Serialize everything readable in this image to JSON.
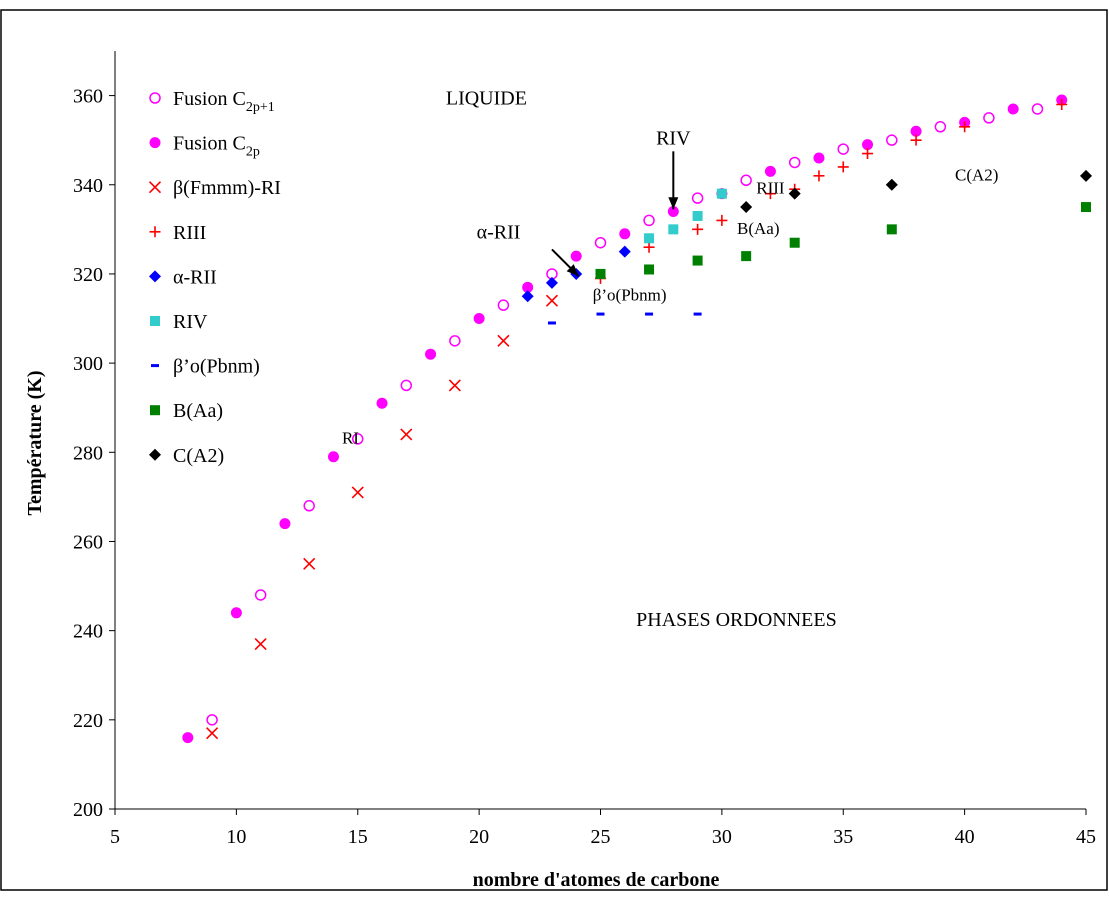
{
  "chart_data": {
    "type": "scatter",
    "title": "",
    "xlabel": "nombre d'atomes de carbone",
    "ylabel": "Température (K)",
    "xlim": [
      5,
      45
    ],
    "ylim": [
      200,
      370
    ],
    "x_ticks": [
      5,
      10,
      15,
      20,
      25,
      30,
      35,
      40,
      45
    ],
    "y_ticks": [
      200,
      220,
      240,
      260,
      280,
      300,
      320,
      340,
      360
    ],
    "grid": false,
    "legend_position": "top-left",
    "series": [
      {
        "name": "Fusion C2p+1",
        "legend": {
          "text": "Fusion C",
          "sub": "2p+1"
        },
        "marker": "open-circle",
        "color": "#ff00ff",
        "points": [
          [
            9,
            220
          ],
          [
            11,
            248
          ],
          [
            13,
            268
          ],
          [
            15,
            283
          ],
          [
            17,
            295
          ],
          [
            19,
            305
          ],
          [
            21,
            313
          ],
          [
            23,
            320
          ],
          [
            25,
            327
          ],
          [
            27,
            332
          ],
          [
            29,
            337
          ],
          [
            31,
            341
          ],
          [
            33,
            345
          ],
          [
            35,
            348
          ],
          [
            37,
            350
          ],
          [
            39,
            353
          ],
          [
            41,
            355
          ],
          [
            43,
            357
          ]
        ]
      },
      {
        "name": "Fusion C2p",
        "legend": {
          "text": "Fusion C",
          "sub": "2p"
        },
        "marker": "filled-circle",
        "color": "#ff00ff",
        "points": [
          [
            8,
            216
          ],
          [
            10,
            244
          ],
          [
            12,
            264
          ],
          [
            14,
            279
          ],
          [
            16,
            291
          ],
          [
            18,
            302
          ],
          [
            20,
            310
          ],
          [
            22,
            317
          ],
          [
            24,
            324
          ],
          [
            26,
            329
          ],
          [
            28,
            334
          ],
          [
            30,
            338
          ],
          [
            32,
            343
          ],
          [
            34,
            346
          ],
          [
            36,
            349
          ],
          [
            38,
            352
          ],
          [
            40,
            354
          ],
          [
            42,
            357
          ],
          [
            44,
            359
          ]
        ]
      },
      {
        "name": "β(Fmmm)-RI",
        "marker": "x",
        "color": "#ff0000",
        "points": [
          [
            9,
            217
          ],
          [
            11,
            237
          ],
          [
            13,
            255
          ],
          [
            15,
            271
          ],
          [
            17,
            284
          ],
          [
            19,
            295
          ],
          [
            21,
            305
          ],
          [
            23,
            314
          ]
        ]
      },
      {
        "name": "RIII",
        "marker": "plus",
        "color": "#ff0000",
        "points": [
          [
            25,
            319
          ],
          [
            27,
            326
          ],
          [
            29,
            330
          ],
          [
            30,
            332
          ],
          [
            32,
            338
          ],
          [
            33,
            339
          ],
          [
            34,
            342
          ],
          [
            35,
            344
          ],
          [
            36,
            347
          ],
          [
            38,
            350
          ],
          [
            40,
            353
          ],
          [
            44,
            358
          ]
        ]
      },
      {
        "name": "α-RII",
        "marker": "diamond",
        "color": "#0000ff",
        "points": [
          [
            22,
            315
          ],
          [
            23,
            318
          ],
          [
            24,
            320
          ],
          [
            26,
            325
          ]
        ]
      },
      {
        "name": "RIV",
        "marker": "square",
        "color": "#33cccc",
        "points": [
          [
            25,
            320
          ],
          [
            27,
            328
          ],
          [
            28,
            330
          ],
          [
            29,
            333
          ],
          [
            30,
            338
          ]
        ]
      },
      {
        "name": "β’o(Pbnm)",
        "marker": "dash",
        "color": "#0000ff",
        "points": [
          [
            23,
            309
          ],
          [
            25,
            311
          ],
          [
            27,
            311
          ],
          [
            29,
            311
          ]
        ]
      },
      {
        "name": "B(Aa)",
        "marker": "square",
        "color": "#008000",
        "points": [
          [
            25,
            320
          ],
          [
            27,
            321
          ],
          [
            29,
            323
          ],
          [
            31,
            324
          ],
          [
            33,
            327
          ],
          [
            37,
            330
          ],
          [
            45,
            335
          ]
        ]
      },
      {
        "name": "C(A2)",
        "marker": "diamond",
        "color": "#000000",
        "points": [
          [
            31,
            335
          ],
          [
            33,
            338
          ],
          [
            37,
            340
          ],
          [
            45,
            342
          ]
        ]
      }
    ],
    "annotations": [
      {
        "text": "LIQUIDE",
        "x": 20.3,
        "y": 358,
        "kind": "label"
      },
      {
        "text": "RIV",
        "x": 28.0,
        "y": 349,
        "kind": "label"
      },
      {
        "text": "RIII",
        "x": 32.0,
        "y": 338,
        "kind": "label-small"
      },
      {
        "text": "C(A2)",
        "x": 40.5,
        "y": 341,
        "kind": "label-small"
      },
      {
        "text": "B(Aa)",
        "x": 31.5,
        "y": 329,
        "kind": "label-small"
      },
      {
        "text": "α-RII",
        "x": 20.8,
        "y": 328,
        "kind": "label"
      },
      {
        "text": "β’o(Pbnm)",
        "x": 26.2,
        "y": 314,
        "kind": "label-small"
      },
      {
        "text": "RI",
        "x": 14.7,
        "y": 282,
        "kind": "label-small"
      },
      {
        "text": "PHASES ORDONNEES",
        "x": 30.6,
        "y": 241,
        "kind": "label"
      }
    ],
    "arrows": [
      {
        "from": [
          23.0,
          325.5
        ],
        "to": [
          24.1,
          319.5
        ]
      },
      {
        "from": [
          28.0,
          347.5
        ],
        "to": [
          28.0,
          334.5
        ]
      }
    ]
  }
}
